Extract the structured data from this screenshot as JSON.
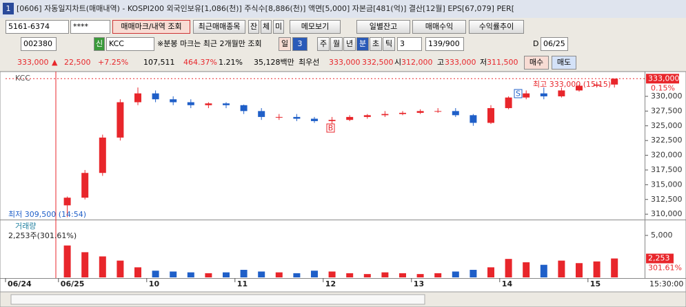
{
  "window": {
    "number": "1",
    "title": "[0606] 자동일지차트(매매내역) - KOSPI200 외국인보유[1,086(천)] 주식수[8,886(천)] 액면[5,000] 자본금[481(억)] 결산[12월] EPS[67,079] PER["
  },
  "toolbar1": [
    "5161-6374",
    "****",
    "매매마크/내역 조회",
    "최근매매종목",
    "잔",
    "체",
    "미",
    "메모보기",
    "일별잔고",
    "매매수익",
    "수익률추이"
  ],
  "toolbar2": [
    "002380",
    "신",
    "KCC",
    "※분봉 마크는 최근 2개월만 조회",
    "일",
    "3",
    "주",
    "월",
    "년",
    "분",
    "초",
    "틱",
    "3",
    "139/900",
    "D",
    "06/25"
  ],
  "quote": [
    "333,000",
    "▲",
    "22,500",
    "+7.25%",
    "107,511",
    "464.37%",
    "1.21%",
    "35,128백만",
    "최우선",
    "333,000",
    "332,500",
    "시",
    "312,000",
    "고",
    "333,000",
    "저",
    "311,500",
    "매수",
    "매도"
  ],
  "chart_data": [
    {
      "type": "candlestick",
      "name": "KCC",
      "up_color": "#e8262b",
      "down_color": "#1f5fc8",
      "categories": [
        "06/24",
        null,
        null,
        "06/25",
        null,
        null,
        null,
        null,
        "10",
        null,
        null,
        null,
        null,
        "11",
        null,
        null,
        null,
        null,
        "12",
        null,
        null,
        null,
        null,
        "13",
        null,
        null,
        null,
        null,
        "14",
        null,
        null,
        null,
        null,
        "15",
        null
      ],
      "open": [
        null,
        null,
        null,
        311500,
        312800,
        317000,
        323000,
        329000,
        330500,
        329500,
        329000,
        328500,
        328800,
        328500,
        327500,
        326500,
        326500,
        326200,
        325800,
        326000,
        326500,
        326800,
        327000,
        327200,
        327500,
        327500,
        326800,
        325500,
        328000,
        329800,
        330500,
        330000,
        331000,
        331800,
        332000
      ],
      "high": [
        null,
        null,
        null,
        313000,
        317500,
        323500,
        329500,
        331500,
        331000,
        330000,
        329500,
        329000,
        329000,
        328600,
        328000,
        327000,
        327000,
        326500,
        326500,
        326800,
        327000,
        327500,
        327500,
        327800,
        328000,
        328000,
        327000,
        328500,
        330000,
        331000,
        331500,
        331500,
        332000,
        332500,
        333000
      ],
      "low": [
        null,
        null,
        null,
        309500,
        312500,
        316500,
        322500,
        328500,
        329000,
        328500,
        328000,
        328000,
        328000,
        327000,
        326000,
        326000,
        325800,
        325500,
        325300,
        325800,
        326200,
        326500,
        326800,
        327000,
        327200,
        326500,
        325000,
        325300,
        327800,
        329500,
        329500,
        329800,
        330800,
        331500,
        331500
      ],
      "close": [
        null,
        null,
        null,
        312800,
        317000,
        323000,
        329000,
        330500,
        329500,
        329000,
        328500,
        328800,
        328500,
        327500,
        326500,
        326500,
        326200,
        325800,
        326000,
        326500,
        326800,
        327000,
        327200,
        327500,
        327500,
        326800,
        325500,
        328000,
        329800,
        330500,
        330000,
        331000,
        331800,
        332000,
        333000
      ],
      "ylim": [
        309200,
        334200
      ],
      "yticks": [
        {
          "value": 310000,
          "label": "310,000"
        },
        {
          "value": 312500,
          "label": "312,500"
        },
        {
          "value": 315000,
          "label": "315,000"
        },
        {
          "value": 317500,
          "label": "317,500"
        },
        {
          "value": 320000,
          "label": "320,000"
        },
        {
          "value": 322500,
          "label": "322,500"
        },
        {
          "value": 325000,
          "label": "325,000"
        },
        {
          "value": 327500,
          "label": "327,500"
        },
        {
          "value": 330000,
          "label": "330,000"
        }
      ],
      "annotations": [
        "최고 333,000 (15:15)",
        "최저 309,500 (14:54)",
        "S",
        "B"
      ],
      "last_price_label": "333,000",
      "change_label": "0.15%",
      "time_label": "15:30:00"
    },
    {
      "type": "bar",
      "title": "거래량",
      "subtitle": "2,253주(301.61%)",
      "up_color": "#e8262b",
      "down_color": "#1f5fc8",
      "values": [
        null,
        null,
        null,
        3800,
        3000,
        2500,
        2000,
        1200,
        800,
        700,
        600,
        500,
        600,
        900,
        700,
        600,
        500,
        800,
        700,
        500,
        400,
        600,
        500,
        400,
        500,
        700,
        900,
        1200,
        2200,
        1800,
        1500,
        2000,
        1700,
        1900,
        2253
      ],
      "ylim": [
        0,
        6640
      ],
      "yticks": [
        {
          "value": 5000,
          "label": "5,000"
        }
      ],
      "last_value_label": "2,253",
      "last_pct_label": "301.61%"
    }
  ]
}
